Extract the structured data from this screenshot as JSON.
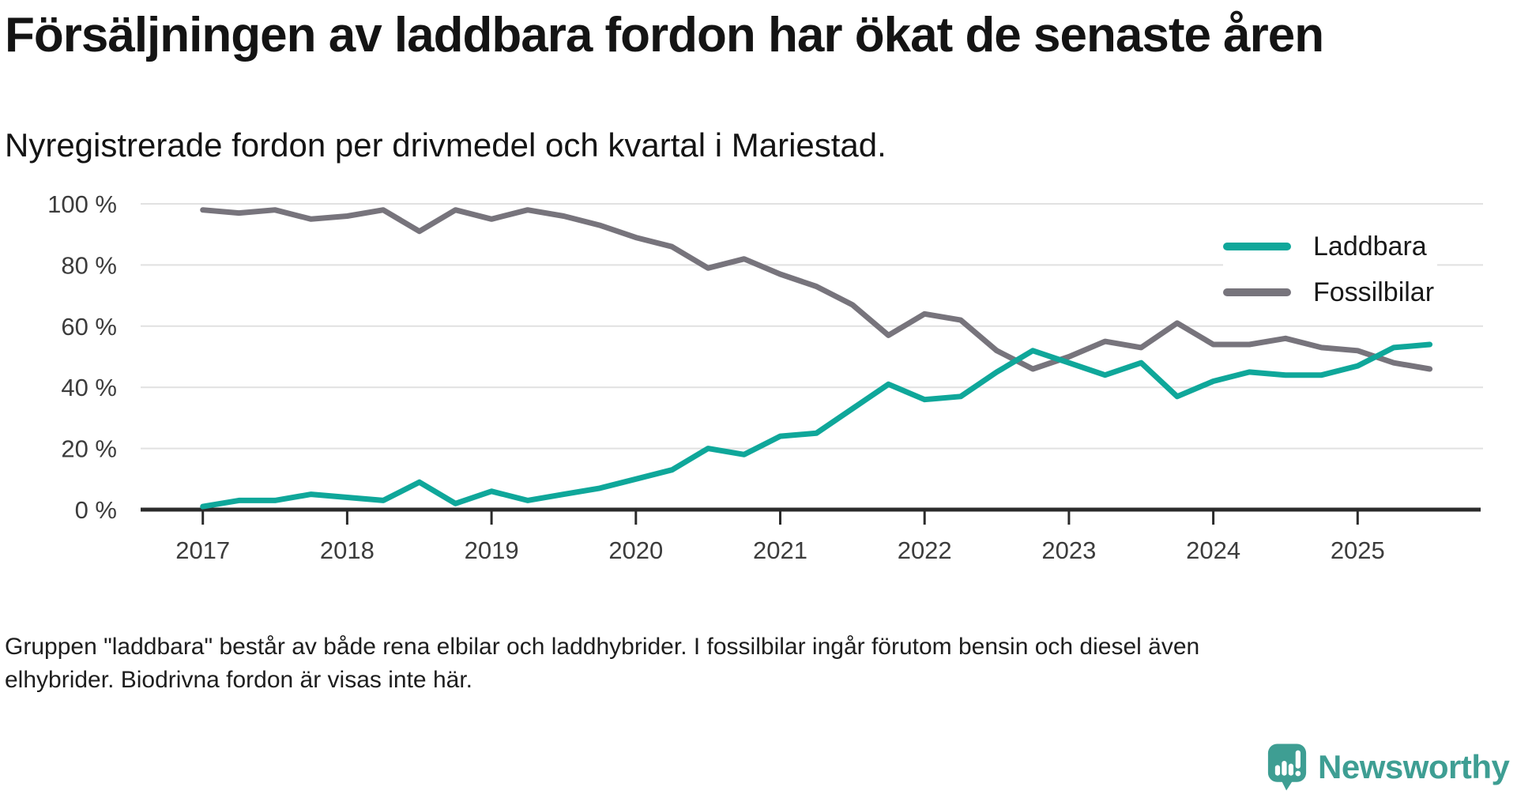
{
  "title": "Försäljningen av laddbara fordon har ökat de senaste åren",
  "subtitle": "Nyregistrerade fordon per drivmedel och kvartal i Mariestad.",
  "footnote_lines": [
    "Gruppen \"laddbara\" består av både rena elbilar och laddhybrider. I fossilbilar ingår förutom bensin och diesel även",
    "elhybrider. Biodrivna fordon är visas inte här."
  ],
  "brand": {
    "name": "Newsworthy",
    "color": "#3E9E93",
    "icon": "newsworthy-speech-bubble-bars-icon"
  },
  "colors": {
    "laddbara": "#0FA79A",
    "fossilbilar": "#77747C",
    "axis": "#2B2B2B",
    "grid": "#E1E1E1",
    "tick_label": "#3C3C3C"
  },
  "chart_data": {
    "type": "line",
    "unit": "%",
    "title": "Försäljningen av laddbara fordon har ökat de senaste åren",
    "subtitle": "Nyregistrerade fordon per drivmedel och kvartal i Mariestad.",
    "xlabel": "",
    "ylabel": "",
    "ylim": [
      0,
      100
    ],
    "yticks": [
      0,
      20,
      40,
      60,
      80,
      100
    ],
    "y_tick_labels": [
      "0 %",
      "20 %",
      "40 %",
      "60 %",
      "80 %",
      "100 %"
    ],
    "x_tick_labels": [
      "2017",
      "2018",
      "2019",
      "2020",
      "2021",
      "2022",
      "2023",
      "2024",
      "2025"
    ],
    "grid": "horizontal",
    "legend_position": "inside-top-right",
    "quarters": [
      "2017 Q1",
      "2017 Q2",
      "2017 Q3",
      "2017 Q4",
      "2018 Q1",
      "2018 Q2",
      "2018 Q3",
      "2018 Q4",
      "2019 Q1",
      "2019 Q2",
      "2019 Q3",
      "2019 Q4",
      "2020 Q1",
      "2020 Q2",
      "2020 Q3",
      "2020 Q4",
      "2021 Q1",
      "2021 Q2",
      "2021 Q3",
      "2021 Q4",
      "2022 Q1",
      "2022 Q2",
      "2022 Q3",
      "2022 Q4",
      "2023 Q1",
      "2023 Q2",
      "2023 Q3",
      "2023 Q4",
      "2024 Q1",
      "2024 Q2",
      "2024 Q3",
      "2024 Q4",
      "2025 Q1",
      "2025 Q2",
      "2025 Q3"
    ],
    "series": [
      {
        "name": "Laddbara",
        "color": "#0FA79A",
        "values": [
          1,
          3,
          3,
          5,
          4,
          3,
          9,
          2,
          6,
          3,
          5,
          7,
          10,
          13,
          20,
          18,
          24,
          25,
          33,
          41,
          36,
          37,
          45,
          52,
          48,
          44,
          48,
          37,
          42,
          45,
          44,
          44,
          47,
          53,
          54
        ]
      },
      {
        "name": "Fossilbilar",
        "color": "#77747C",
        "values": [
          98,
          97,
          98,
          95,
          96,
          98,
          91,
          98,
          95,
          98,
          96,
          93,
          89,
          86,
          79,
          82,
          77,
          73,
          67,
          57,
          64,
          62,
          52,
          46,
          50,
          55,
          53,
          61,
          54,
          54,
          56,
          53,
          52,
          48,
          46
        ]
      }
    ]
  }
}
